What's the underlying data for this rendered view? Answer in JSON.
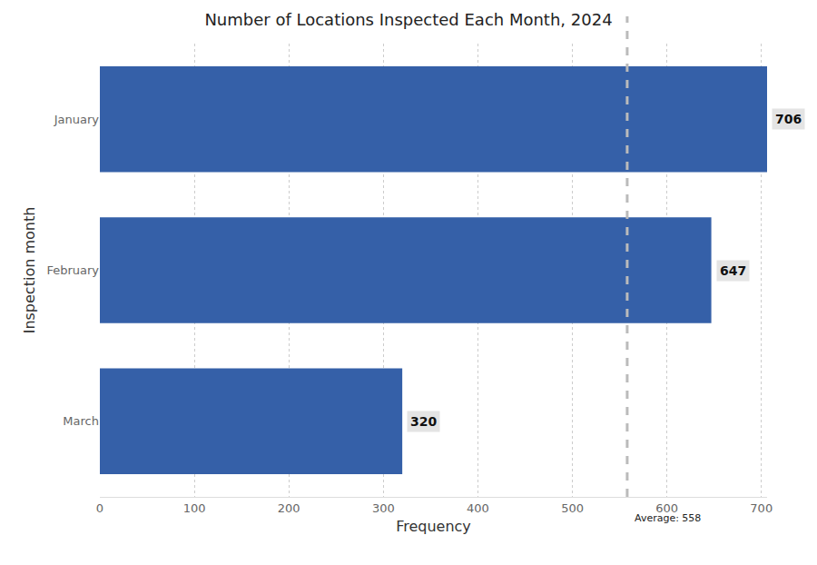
{
  "chart_data": {
    "type": "bar",
    "orientation": "horizontal",
    "title": "Number of Locations Inspected Each Month, 2024",
    "x_label": "Frequency",
    "y_label": "Inspection month",
    "categories": [
      "January",
      "February",
      "March"
    ],
    "values": [
      706,
      647,
      320
    ],
    "color": "#3560a8",
    "xlim": [
      0,
      706
    ],
    "xticks": [
      0,
      100,
      200,
      300,
      400,
      500,
      600,
      700
    ],
    "grid": true,
    "data_labels": true,
    "average": {
      "value": 558,
      "label": "Average: 558"
    }
  }
}
